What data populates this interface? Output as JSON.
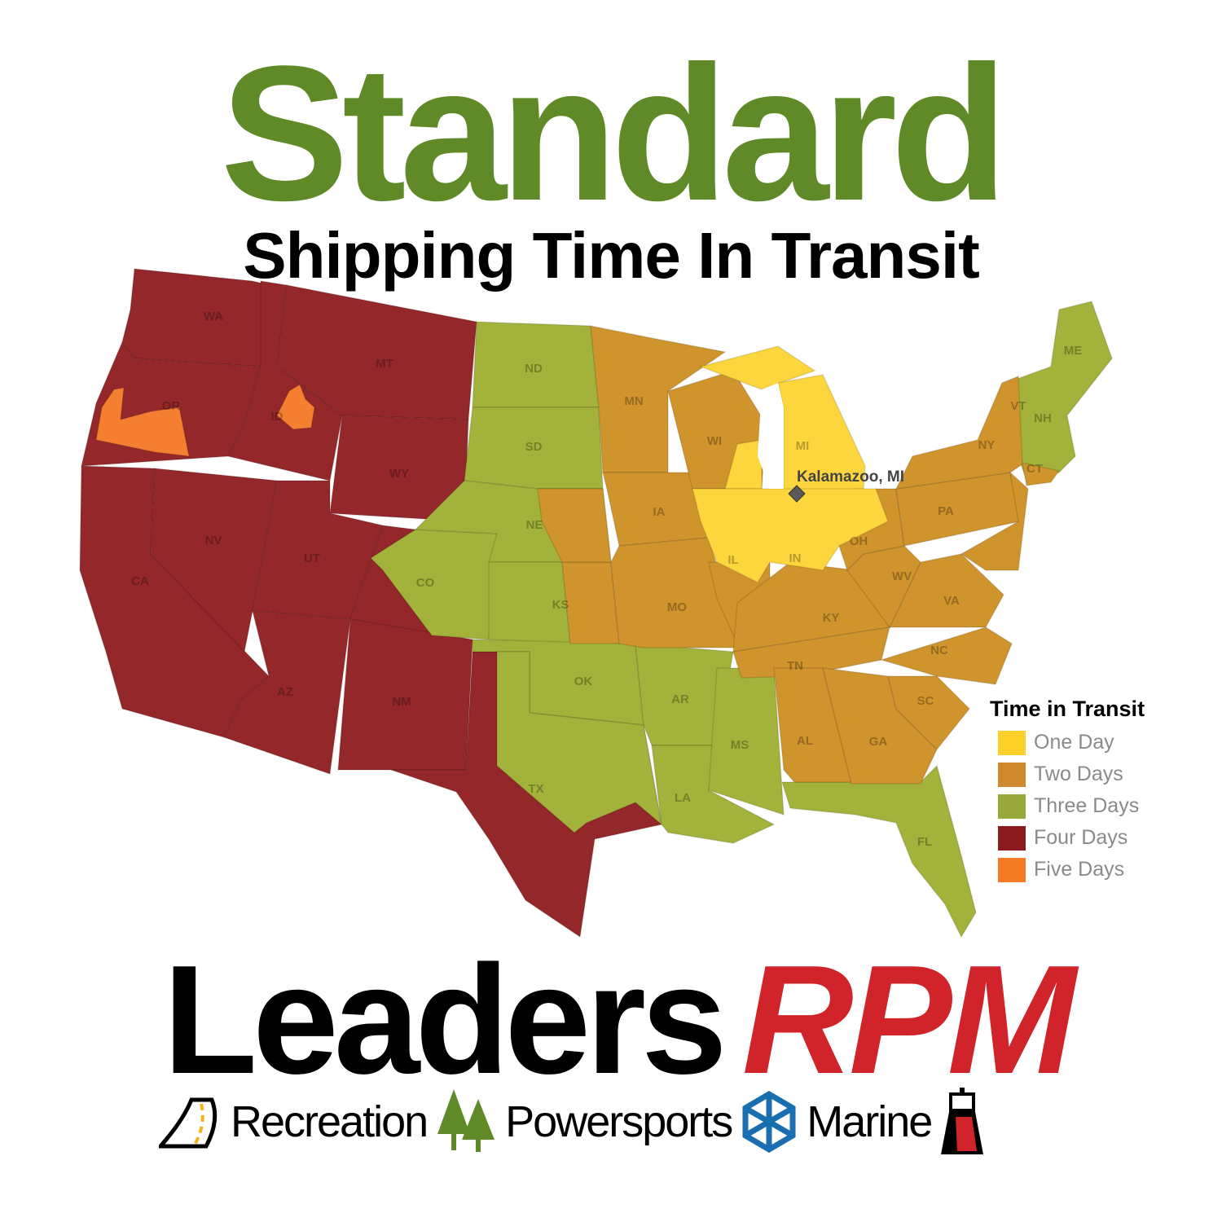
{
  "header": {
    "title": "Standard",
    "subtitle": "Shipping Time In Transit"
  },
  "colors": {
    "one": "#fdd63e",
    "two": "#cf942c",
    "three": "#a2b23a",
    "four": "#94272a",
    "five": "#f47f30",
    "title_green": "#5f8a27",
    "brand_red": "#d1232a"
  },
  "legend": {
    "title": "Time in Transit",
    "items": [
      {
        "label": "One Day",
        "color": "#fdd63e"
      },
      {
        "label": "Two Days",
        "color": "#cf942c"
      },
      {
        "label": "Three Days",
        "color": "#a2b23a"
      },
      {
        "label": "Four Days",
        "color": "#8b1a1e"
      },
      {
        "label": "Five Days",
        "color": "#f47f30"
      }
    ]
  },
  "origin": {
    "label": "Kalamazoo, MI",
    "icon": "diamond-marker-icon"
  },
  "states": {
    "WA": "WA",
    "OR": "OR",
    "CA": "CA",
    "NV": "NV",
    "ID": "ID",
    "MT": "MT",
    "WY": "WY",
    "UT": "UT",
    "CO": "CO",
    "AZ": "AZ",
    "NM": "NM",
    "ND": "ND",
    "SD": "SD",
    "NE": "NE",
    "KS": "KS",
    "OK": "OK",
    "TX": "TX",
    "MN": "MN",
    "IA": "IA",
    "MO": "MO",
    "AR": "AR",
    "LA": "LA",
    "MS": "MS",
    "AL": "AL",
    "TN": "TN",
    "KY": "KY",
    "IL": "IL",
    "IN": "IN",
    "OH": "OH",
    "WI": "WI",
    "MI": "MI",
    "PA": "PA",
    "NY": "NY",
    "WV": "WV",
    "VA": "VA",
    "NC": "NC",
    "SC": "SC",
    "GA": "GA",
    "FL": "FL",
    "VT": "VT",
    "NH": "NH",
    "ME": "ME",
    "CT": "CT"
  },
  "brand": {
    "name_part1": "Leaders",
    "name_part2": "RPM",
    "divisions": [
      "Recreation",
      "Powersports",
      "Marine"
    ],
    "icons": [
      "road-icon",
      "pine-trees-icon",
      "snowflake-icon",
      "lighthouse-icon"
    ]
  }
}
